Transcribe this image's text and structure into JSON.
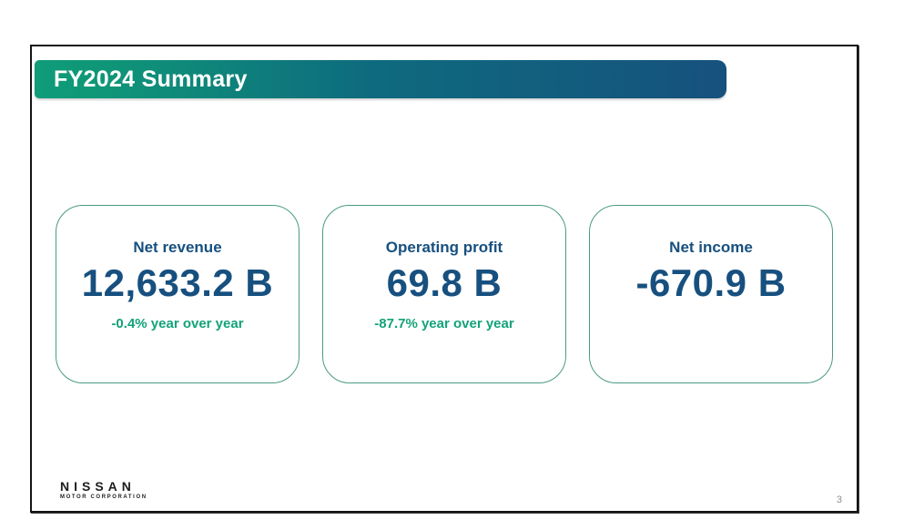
{
  "slide": {
    "title": "FY2024 Summary",
    "page_number": "3",
    "logo": {
      "brand": "NISSAN",
      "subtitle": "MOTOR CORPORATION"
    }
  },
  "metrics": [
    {
      "label": "Net revenue",
      "value": "12,633.2 B",
      "yoy": "-0.4% year over year"
    },
    {
      "label": "Operating profit",
      "value": "69.8 B",
      "yoy": "-87.7% year over year"
    },
    {
      "label": "Net income",
      "value": "-670.9 B",
      "yoy": ""
    }
  ],
  "colors": {
    "banner_gradient_start": "#0f9678",
    "banner_gradient_mid": "#0e6b7e",
    "banner_gradient_end": "#16517d",
    "metric_text": "#17507f",
    "yoy_text": "#12a378",
    "card_border": "#4a9a85",
    "frame_border": "#141414"
  }
}
